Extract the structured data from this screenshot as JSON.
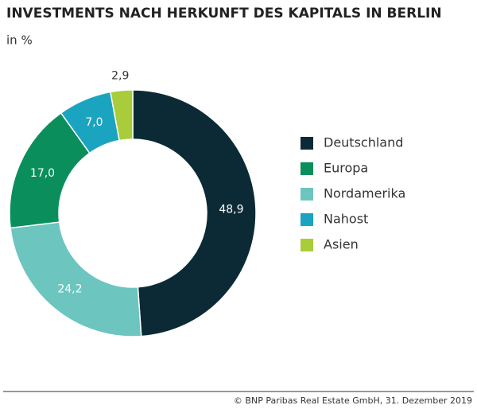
{
  "chart_data": {
    "type": "donut",
    "title": "INVESTMENTS NACH HERKUNFT DES KAPITALS IN BERLIN",
    "subtitle": "in %",
    "categories": [
      "Deutschland",
      "Nordamerika",
      "Europa",
      "Nahost",
      "Asien"
    ],
    "values": [
      48.9,
      24.2,
      17.0,
      7.0,
      2.9
    ],
    "value_labels": [
      "48,9",
      "24,2",
      "17,0",
      "7,0",
      "2,9"
    ],
    "colors": [
      "#0b2a35",
      "#6cc5bf",
      "#0a8f5c",
      "#1ba4c0",
      "#a8cc3a"
    ],
    "source": "© BNP Paribas Real Estate GmbH, 31. Dezember 2019"
  }
}
